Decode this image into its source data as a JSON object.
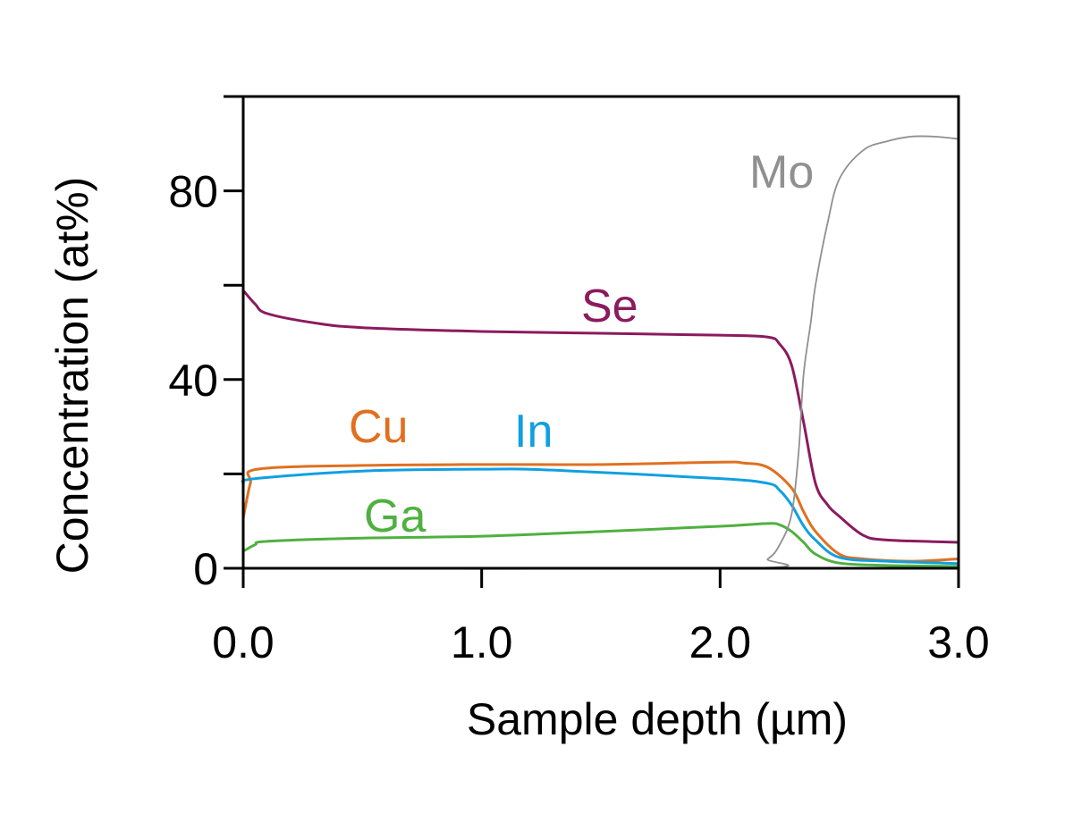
{
  "chart_data": {
    "type": "line",
    "title": "",
    "xlabel": "Sample depth (µm)",
    "ylabel": "Concentration (at%)",
    "xlim": [
      0,
      3.0
    ],
    "ylim": [
      0,
      100
    ],
    "x_ticks": [
      0,
      1,
      2,
      3
    ],
    "x_tick_labels": [
      "0.0",
      "1.0",
      "2.0",
      "3.0"
    ],
    "y_ticks": [
      0,
      20,
      40,
      60,
      80,
      100
    ],
    "y_tick_labels": [
      "0",
      "",
      "40",
      "",
      "80",
      ""
    ],
    "grid": false,
    "legend": "inline labels",
    "series": [
      {
        "name": "Se",
        "color": "#8B1A5E",
        "x": [
          0,
          0.05,
          0.1,
          0.3,
          0.5,
          1.0,
          1.5,
          2.0,
          2.2,
          2.25,
          2.3,
          2.35,
          2.4,
          2.45,
          2.5,
          2.6,
          2.7,
          3.0
        ],
        "y": [
          58.9,
          56,
          54,
          52,
          51,
          50.2,
          49.8,
          49.4,
          49,
          47.5,
          43,
          31,
          18,
          13.5,
          11,
          7,
          6,
          5.5
        ]
      },
      {
        "name": "Cu",
        "color": "#E07020",
        "x": [
          0,
          0.03,
          0.06,
          0.5,
          1.0,
          1.5,
          2.0,
          2.1,
          2.2,
          2.3,
          2.35,
          2.4,
          2.5,
          2.6,
          2.8,
          3.0
        ],
        "y": [
          10.6,
          18,
          21,
          21.8,
          22,
          22,
          22.5,
          22.3,
          21.4,
          17,
          12,
          7.8,
          3,
          2,
          1.5,
          2
        ]
      },
      {
        "name": "In",
        "color": "#10A0E0",
        "x": [
          0,
          0.05,
          0.5,
          1.0,
          1.3,
          2.0,
          2.2,
          2.25,
          2.3,
          2.35,
          2.4,
          2.5,
          2.7,
          3.0
        ],
        "y": [
          18,
          19,
          20.6,
          21,
          20.8,
          19,
          18,
          16.5,
          13.4,
          9,
          6,
          2.3,
          1.5,
          1
        ]
      },
      {
        "name": "Ga",
        "color": "#50B040",
        "x": [
          0,
          0.05,
          0.1,
          0.5,
          1.0,
          1.5,
          2.0,
          2.2,
          2.25,
          2.3,
          2.35,
          2.4,
          2.5,
          2.7,
          3.0
        ],
        "y": [
          3.6,
          5,
          5.7,
          6.4,
          6.8,
          7.8,
          8.9,
          9.5,
          9.2,
          7.8,
          5.5,
          3,
          1.1,
          0.6,
          0.4
        ]
      },
      {
        "name": "Mo",
        "color": "#909090",
        "x": [
          0,
          2.1,
          2.2,
          2.25,
          2.3,
          2.33,
          2.35,
          2.38,
          2.4,
          2.45,
          2.5,
          2.6,
          2.7,
          2.8,
          2.9,
          3.0
        ],
        "y": [
          0,
          0,
          2,
          5,
          11.5,
          25,
          41,
          52,
          60,
          73,
          82.5,
          88.6,
          90.5,
          91.5,
          91.5,
          91
        ]
      }
    ],
    "annotations": [
      "Mo",
      "Se",
      "Cu",
      "In",
      "Ga"
    ]
  }
}
